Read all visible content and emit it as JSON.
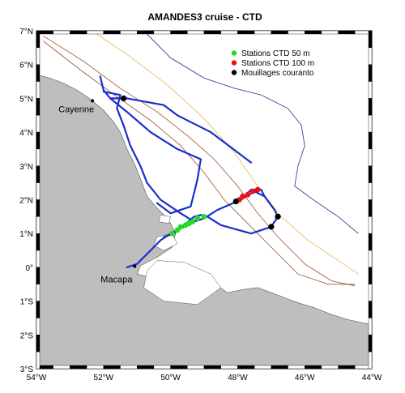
{
  "title": "AMANDES3 cruise - CTD",
  "map": {
    "lon_range": [
      -54,
      -44
    ],
    "lat_range": [
      -3,
      7
    ],
    "x_ticks": [
      {
        "value": -54,
        "label": "54°W"
      },
      {
        "value": -52,
        "label": "52°W"
      },
      {
        "value": -50,
        "label": "50°W"
      },
      {
        "value": -48,
        "label": "48°W"
      },
      {
        "value": -46,
        "label": "46°W"
      },
      {
        "value": -44,
        "label": "44°W"
      }
    ],
    "y_ticks": [
      {
        "value": 7,
        "label": "7°N"
      },
      {
        "value": 6,
        "label": "6°N"
      },
      {
        "value": 5,
        "label": "5°N"
      },
      {
        "value": 4,
        "label": "4°N"
      },
      {
        "value": 3,
        "label": "3°N"
      },
      {
        "value": 2,
        "label": "2°N"
      },
      {
        "value": 1,
        "label": "1°N"
      },
      {
        "value": 0,
        "label": "0°"
      },
      {
        "value": -1,
        "label": "1°S"
      },
      {
        "value": -2,
        "label": "2°S"
      },
      {
        "value": -3,
        "label": "3°S"
      }
    ],
    "places": [
      {
        "name": "Cayenne",
        "lon": -52.33,
        "lat": 4.93
      },
      {
        "name": "Macapa",
        "lon": -51.07,
        "lat": 0.03
      }
    ],
    "legend": {
      "position": "top-right",
      "entries": [
        {
          "label": "Stations CTD  50 m",
          "color": "#22dd22"
        },
        {
          "label": "Stations CTD  100 m",
          "color": "#ee1111"
        },
        {
          "label": "Mouillages couranto",
          "color": "#000000"
        }
      ]
    },
    "colors": {
      "land": "#bebebe",
      "track": "#1a2ecc",
      "station_50m": "#22dd22",
      "station_100m": "#ee1111",
      "mooring": "#000000",
      "isobath_shelf": "#a0522d",
      "isobath_mid": "#e8b84a",
      "isobath_deep": "#2a2a8a"
    },
    "coast": [
      [
        -54,
        5.7
      ],
      [
        -53.6,
        5.6
      ],
      [
        -53.2,
        5.45
      ],
      [
        -52.8,
        5.25
      ],
      [
        -52.5,
        5.05
      ],
      [
        -52.3,
        4.9
      ],
      [
        -52.0,
        4.65
      ],
      [
        -51.7,
        4.3
      ],
      [
        -51.5,
        4.0
      ],
      [
        -51.3,
        3.5
      ],
      [
        -51.05,
        3.0
      ],
      [
        -50.85,
        2.5
      ],
      [
        -50.7,
        2.1
      ],
      [
        -50.45,
        1.8
      ],
      [
        -50.2,
        1.55
      ],
      [
        -50.0,
        1.3
      ],
      [
        -49.85,
        1.0
      ],
      [
        -49.95,
        0.6
      ],
      [
        -50.4,
        0.3
      ],
      [
        -50.9,
        0.05
      ],
      [
        -51.0,
        -0.2
      ],
      [
        -50.6,
        -0.3
      ],
      [
        -50.0,
        -0.15
      ],
      [
        -49.5,
        -0.1
      ],
      [
        -49.1,
        -0.3
      ],
      [
        -48.6,
        -0.55
      ],
      [
        -48.3,
        -0.75
      ],
      [
        -47.8,
        -0.65
      ],
      [
        -47.4,
        -0.6
      ],
      [
        -47.0,
        -0.75
      ],
      [
        -46.6,
        -0.9
      ],
      [
        -46.2,
        -1.05
      ],
      [
        -45.7,
        -1.2
      ],
      [
        -45.2,
        -1.4
      ],
      [
        -44.7,
        -1.55
      ],
      [
        -44.0,
        -1.7
      ],
      [
        -44,
        -3
      ],
      [
        -54,
        -3
      ]
    ],
    "islands": [
      [
        [
          -50.4,
          0.2
        ],
        [
          -49.6,
          0.15
        ],
        [
          -48.8,
          -0.2
        ],
        [
          -48.5,
          -0.6
        ],
        [
          -49.2,
          -1.1
        ],
        [
          -50.2,
          -1.0
        ],
        [
          -50.8,
          -0.6
        ],
        [
          -50.7,
          -0.1
        ]
      ],
      [
        [
          -50.4,
          0.9
        ],
        [
          -49.95,
          1.0
        ],
        [
          -49.8,
          0.7
        ],
        [
          -50.2,
          0.5
        ],
        [
          -50.5,
          0.65
        ]
      ],
      [
        [
          -50.3,
          1.55
        ],
        [
          -50.0,
          1.5
        ],
        [
          -50.05,
          1.3
        ],
        [
          -50.35,
          1.35
        ]
      ]
    ],
    "track": [
      [
        [
          -52.1,
          5.65
        ],
        [
          -52.0,
          5.25
        ],
        [
          -51.8,
          5.0
        ],
        [
          -51.3,
          5.0
        ],
        [
          -50.2,
          4.8
        ],
        [
          -49.8,
          4.5
        ],
        [
          -48.8,
          4.0
        ],
        [
          -47.6,
          3.1
        ]
      ],
      [
        [
          -52.0,
          5.2
        ],
        [
          -51.5,
          5.1
        ],
        [
          -51.6,
          4.7
        ],
        [
          -51.4,
          4.2
        ],
        [
          -51.2,
          3.6
        ],
        [
          -50.9,
          3.0
        ],
        [
          -50.7,
          2.5
        ],
        [
          -50.3,
          2.0
        ],
        [
          -49.7,
          1.6
        ],
        [
          -49.3,
          1.35
        ],
        [
          -49.0,
          1.45
        ],
        [
          -48.6,
          1.7
        ],
        [
          -47.9,
          2.0
        ],
        [
          -47.5,
          2.25
        ],
        [
          -47.2,
          2.1
        ],
        [
          -46.9,
          1.7
        ],
        [
          -46.8,
          1.5
        ],
        [
          -47.0,
          1.2
        ],
        [
          -47.6,
          1.0
        ],
        [
          -48.5,
          1.25
        ],
        [
          -48.9,
          1.5
        ],
        [
          -49.1,
          1.55
        ],
        [
          -49.3,
          1.5
        ],
        [
          -49.6,
          1.25
        ],
        [
          -49.9,
          1.0
        ],
        [
          -50.2,
          0.9
        ]
      ],
      [
        [
          -51.8,
          5.0
        ],
        [
          -51.3,
          4.6
        ],
        [
          -50.6,
          4.0
        ],
        [
          -49.8,
          3.5
        ],
        [
          -49.1,
          3.2
        ],
        [
          -49.2,
          2.6
        ],
        [
          -49.3,
          2.2
        ],
        [
          -49.4,
          1.8
        ],
        [
          -50.0,
          1.6
        ],
        [
          -50.4,
          1.9
        ]
      ],
      [
        [
          -49.3,
          1.4
        ],
        [
          -49.6,
          1.2
        ],
        [
          -50.0,
          1.0
        ],
        [
          -50.3,
          0.8
        ],
        [
          -50.6,
          0.5
        ],
        [
          -51.0,
          0.1
        ],
        [
          -51.3,
          0.0
        ]
      ],
      [
        [
          -47.9,
          2.0
        ],
        [
          -47.6,
          2.3
        ],
        [
          -47.3,
          2.3
        ],
        [
          -47.2,
          2.1
        ]
      ]
    ],
    "isobaths": [
      {
        "color": "#a0522d",
        "points": [
          [
            -53.8,
            6.85
          ],
          [
            -52.6,
            6.1
          ],
          [
            -51.5,
            5.3
          ],
          [
            -50.4,
            4.6
          ],
          [
            -49.5,
            3.9
          ],
          [
            -48.7,
            3.2
          ],
          [
            -48.0,
            2.4
          ],
          [
            -47.4,
            1.6
          ],
          [
            -46.8,
            0.9
          ],
          [
            -46.0,
            0.1
          ],
          [
            -45.2,
            -0.4
          ],
          [
            -44.5,
            -0.55
          ]
        ]
      },
      {
        "color": "#a0522d",
        "points": [
          [
            -53.8,
            6.7
          ],
          [
            -52.7,
            5.85
          ],
          [
            -51.6,
            5.05
          ],
          [
            -50.6,
            4.35
          ],
          [
            -49.7,
            3.6
          ],
          [
            -49.0,
            2.8
          ],
          [
            -48.4,
            2.0
          ],
          [
            -47.7,
            1.3
          ],
          [
            -47.0,
            0.6
          ],
          [
            -46.2,
            -0.2
          ],
          [
            -45.3,
            -0.5
          ],
          [
            -44.5,
            -0.5
          ]
        ]
      },
      {
        "color": "#e8b84a",
        "points": [
          [
            -52.2,
            6.9
          ],
          [
            -51.3,
            6.3
          ],
          [
            -50.1,
            5.4
          ],
          [
            -49.0,
            4.4
          ],
          [
            -48.1,
            3.4
          ],
          [
            -47.4,
            2.4
          ],
          [
            -46.7,
            1.5
          ],
          [
            -45.9,
            0.8
          ],
          [
            -45.0,
            0.2
          ],
          [
            -44.4,
            -0.2
          ]
        ]
      },
      {
        "color": "#2a2a8a",
        "points": [
          [
            -50.7,
            6.9
          ],
          [
            -50.0,
            6.2
          ],
          [
            -49.0,
            5.6
          ],
          [
            -48.1,
            5.3
          ],
          [
            -47.3,
            5.1
          ],
          [
            -46.5,
            4.7
          ],
          [
            -46.1,
            4.2
          ],
          [
            -46.0,
            3.6
          ],
          [
            -46.2,
            3.0
          ],
          [
            -46.3,
            2.4
          ],
          [
            -45.6,
            1.9
          ],
          [
            -45.0,
            1.5
          ],
          [
            -44.4,
            1.0
          ]
        ]
      }
    ],
    "stations_50m": [
      [
        -49.0,
        1.5
      ],
      [
        -49.2,
        1.45
      ],
      [
        -49.35,
        1.35
      ],
      [
        -49.45,
        1.3
      ],
      [
        -49.55,
        1.25
      ],
      [
        -49.7,
        1.2
      ],
      [
        -49.8,
        1.1
      ],
      [
        -49.95,
        1.0
      ]
    ],
    "stations_100m": [
      [
        -47.95,
        2.0
      ],
      [
        -47.85,
        2.1
      ],
      [
        -47.7,
        2.15
      ],
      [
        -47.55,
        2.25
      ],
      [
        -47.4,
        2.3
      ]
    ],
    "moorings": [
      [
        -51.4,
        5.0
      ],
      [
        -48.05,
        1.95
      ],
      [
        -46.8,
        1.5
      ],
      [
        -47.0,
        1.2
      ]
    ]
  }
}
